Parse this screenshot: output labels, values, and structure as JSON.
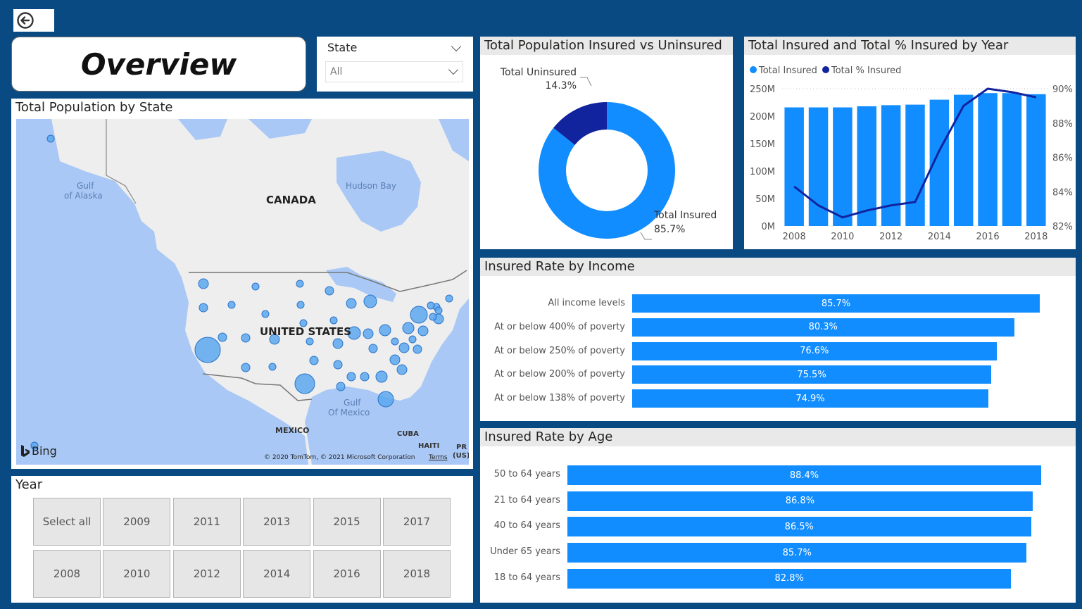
{
  "page_title": "Overview",
  "state_slicer": {
    "label": "State",
    "selected": "All"
  },
  "map": {
    "title": "Total Population by State",
    "labels": {
      "canada": "CANADA",
      "us": "UNITED STATES",
      "mexico": "MEXICO",
      "cuba": "CUBA",
      "haiti": "HAITI",
      "pr1": "PR",
      "pr2": "(US)",
      "hudson": "Hudson Bay",
      "gulf_alaska1": "Gulf",
      "gulf_alaska2": "of Alaska",
      "gulf_mexico1": "Gulf",
      "gulf_mexico2": "Of Mexico",
      "bing": "Bing",
      "copyright": "© 2020 TomTom, © 2021 Microsoft Corporation",
      "terms": "Terms"
    },
    "colors": {
      "land": "#eeeeee",
      "water": "#a9c8f5",
      "bubble": "#5aa7ee"
    }
  },
  "year_slicer": {
    "title": "Year",
    "options": [
      "Select all",
      "2009",
      "2011",
      "2013",
      "2015",
      "2017",
      "2008",
      "2010",
      "2012",
      "2014",
      "2016",
      "2018"
    ]
  },
  "chart_data": [
    {
      "type": "pie",
      "title": "Total Population Insured vs Uninsured",
      "slices": [
        {
          "label": "Total Insured",
          "value": 85.7,
          "display": "85.7%",
          "color": "#118dff"
        },
        {
          "label": "Total Uninsured",
          "value": 14.3,
          "display": "14.3%",
          "color": "#12239e"
        }
      ]
    },
    {
      "type": "bar",
      "title": "Total Insured and Total % Insured by Year",
      "legend": [
        "Total Insured",
        "Total % Insured"
      ],
      "legend_position": "top-left",
      "categories": [
        "2008",
        "2009",
        "2010",
        "2011",
        "2012",
        "2013",
        "2014",
        "2015",
        "2016",
        "2017",
        "2018"
      ],
      "x_tick_labels": [
        "2008",
        "2010",
        "2012",
        "2014",
        "2016",
        "2018"
      ],
      "series": [
        {
          "name": "Total Insured",
          "type": "bar",
          "values": [
            216,
            216,
            216,
            218,
            220,
            221,
            230,
            239,
            242,
            242,
            240
          ],
          "color": "#118dff"
        },
        {
          "name": "Total % Insured",
          "type": "line",
          "values": [
            84.3,
            83.2,
            82.5,
            82.9,
            83.2,
            83.4,
            86.4,
            89.0,
            90.0,
            89.8,
            89.5
          ],
          "color": "#12239e"
        }
      ],
      "y_left": {
        "range": [
          0,
          250
        ],
        "ticks": [
          "0M",
          "50M",
          "100M",
          "150M",
          "200M",
          "250M"
        ]
      },
      "y_right": {
        "range": [
          82,
          90
        ],
        "ticks": [
          "82%",
          "84%",
          "86%",
          "88%",
          "90%"
        ]
      }
    },
    {
      "type": "bar",
      "orientation": "horizontal",
      "title": "Insured Rate by Income",
      "categories": [
        "All income levels",
        "At or below 400% of poverty",
        "At or below 250% of poverty",
        "At or below 200% of poverty",
        "At or below 138% of poverty"
      ],
      "values": [
        85.7,
        80.3,
        76.6,
        75.5,
        74.9
      ],
      "labels": [
        "85.7%",
        "80.3%",
        "76.6%",
        "75.5%",
        "74.9%"
      ],
      "color": "#118dff"
    },
    {
      "type": "bar",
      "orientation": "horizontal",
      "title": "Insured Rate by Age",
      "categories": [
        "50 to 64 years",
        "21 to 64 years",
        "40 to 64 years",
        "Under 65 years",
        "18 to 64 years"
      ],
      "values": [
        88.4,
        86.8,
        86.5,
        85.7,
        82.8
      ],
      "labels": [
        "88.4%",
        "86.8%",
        "86.5%",
        "85.7%",
        "82.8%"
      ],
      "color": "#118dff"
    }
  ]
}
